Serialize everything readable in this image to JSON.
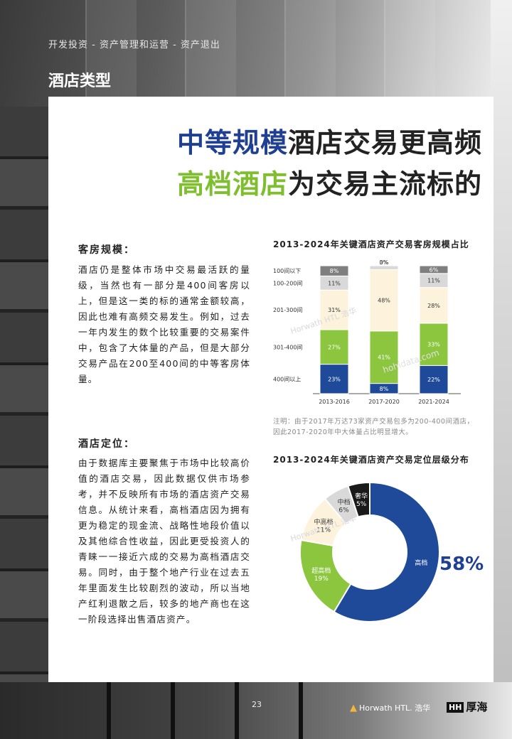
{
  "header": {
    "breadcrumb": "开发投资 - 资产管理和运营 - 资产退出",
    "section_title": "酒店类型"
  },
  "headline": {
    "line1_highlight": "中等规模",
    "line1_rest": "酒店交易更高频",
    "line2_highlight": "高档酒店",
    "line2_rest": "为交易主流标的"
  },
  "colors": {
    "navy": "#1f4a9a",
    "green": "#8cc63f",
    "cream": "#fdf3dd",
    "light_gray": "#d9d9d9",
    "dark_gray": "#7f7f7f",
    "black": "#1a1a1a"
  },
  "sections": {
    "rooms": {
      "heading": "客房规模：",
      "body": "酒店仍是整体市场中交易最活跃的量级，当然也有一部分是400间客房以上，但是这一类的标的通常金额较高，因此也难有高频交易发生。例如，过去一年内发生的数个比较重要的交易案件中，包含了大体量的产品，但是大部分交易产品在200至400间的中等客房体量。"
    },
    "positioning": {
      "heading": "酒店定位：",
      "body": "由于数据库主要聚焦于市场中比较高价值的酒店交易，因此数据仅供市场参考，并不反映所有市场的酒店资产交易信息。从统计来看，高档酒店因为拥有更为稳定的现金流、战略性地段价值以及其他综合性收益，因此更受投资人的青睐一一接近六成的交易为高档酒店交易。同时，由于整个地产行业在过去五年里面发生比较剧烈的波动，所以当地产红利退散之后，较多的地产商也在这一阶段选择出售酒店资产。"
    }
  },
  "chart_data": [
    {
      "type": "bar",
      "stacked": true,
      "percent": true,
      "title": "2013-2024年关键酒店资产交易客房规模占比",
      "categories": [
        "2013-2016",
        "2017-2020",
        "2021-2024"
      ],
      "series": [
        {
          "name": "400间以上",
          "color": "#1f4a9a",
          "labels": [
            "23%",
            "8%",
            "22%"
          ],
          "values": [
            23,
            8,
            22
          ]
        },
        {
          "name": "301-400间",
          "color": "#8cc63f",
          "labels": [
            "27%",
            "41%",
            "33%"
          ],
          "values": [
            27,
            41,
            33
          ]
        },
        {
          "name": "201-300间",
          "color": "#fdf3dd",
          "labels": [
            "31%",
            "48%",
            "28%"
          ],
          "values": [
            31,
            48,
            28
          ]
        },
        {
          "name": "100-200间",
          "color": "#d9d9d9",
          "labels": [
            "11%",
            "3%",
            "11%"
          ],
          "values": [
            11,
            3,
            11
          ]
        },
        {
          "name": "100间以下",
          "color": "#7f7f7f",
          "labels": [
            "8%",
            "0%",
            "6%"
          ],
          "values": [
            8,
            0,
            6
          ]
        }
      ],
      "note": "注明：由于2017年万达73家资产交易包多为200-400间酒店，因此2017-2020年中大体量占比明显增大。"
    },
    {
      "type": "pie",
      "donut": true,
      "title": "2013-2024年关键酒店资产交易定位层级分布",
      "slices": [
        {
          "name": "高档",
          "label": "58%",
          "value": 58,
          "color": "#1f4a9a"
        },
        {
          "name": "超高档",
          "label": "19%",
          "value": 19,
          "color": "#8cc63f"
        },
        {
          "name": "中高档",
          "label": "11%",
          "value": 11,
          "color": "#fdf3dd"
        },
        {
          "name": "中档",
          "label": "6%",
          "value": 6,
          "color": "#d9d9d9"
        },
        {
          "name": "奢华",
          "label": "5%",
          "value": 5,
          "color": "#1a1a1a"
        }
      ],
      "callout": "58%"
    }
  ],
  "watermarks": [
    "Horwath HTL 浩华",
    "hohidata.com"
  ],
  "footer": {
    "page_number": "23",
    "logo_horwath": "Horwath HTL. 浩华",
    "logo_houhai": "厚海",
    "logo_houhai_mark": "HH"
  }
}
